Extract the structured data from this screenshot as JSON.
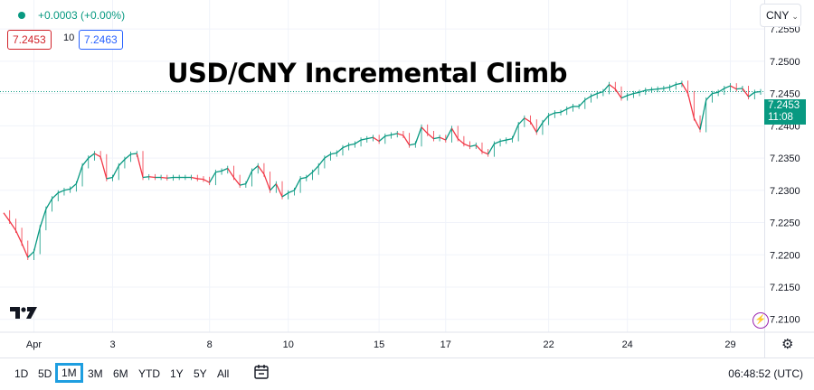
{
  "header": {
    "change": "+0.0003 (+0.00%)",
    "sell_price": "7.2453",
    "spread": "10",
    "buy_price": "7.2463",
    "currency": "CNY"
  },
  "headline": "USD/CNY Incremental Climb",
  "last_price": {
    "value": "7.2453",
    "countdown": "11:08"
  },
  "toolbar": {
    "timeframes": [
      "1D",
      "5D",
      "1M",
      "3M",
      "6M",
      "YTD",
      "1Y",
      "5Y",
      "All"
    ],
    "active": "1M",
    "clock": "06:48:52 (UTC)"
  },
  "colors": {
    "up": "#089981",
    "down": "#f23645",
    "accent": "#2962ff"
  },
  "chart_data": {
    "type": "line",
    "title": "",
    "xlabel": "",
    "ylabel": "",
    "ylim": [
      7.208,
      7.2595
    ],
    "y_ticks": [
      7.21,
      7.215,
      7.22,
      7.225,
      7.23,
      7.235,
      7.24,
      7.245,
      7.25,
      7.255
    ],
    "x_ticks": [
      {
        "label": "Apr",
        "idx": 5
      },
      {
        "label": "3",
        "idx": 18
      },
      {
        "label": "8",
        "idx": 34
      },
      {
        "label": "10",
        "idx": 47
      },
      {
        "label": "15",
        "idx": 62
      },
      {
        "label": "17",
        "idx": 73
      },
      {
        "label": "22",
        "idx": 90
      },
      {
        "label": "24",
        "idx": 103
      },
      {
        "label": "29",
        "idx": 120
      }
    ],
    "grid": true,
    "last_price": 7.2453,
    "values": [
      7.2265,
      7.2252,
      7.2238,
      7.2218,
      7.2196,
      7.2205,
      7.2242,
      7.2271,
      7.2287,
      7.2296,
      7.23,
      7.2302,
      7.231,
      7.2338,
      7.235,
      7.2357,
      7.2352,
      7.2318,
      7.232,
      7.2338,
      7.2348,
      7.2356,
      7.2357,
      7.232,
      7.2321,
      7.232,
      7.232,
      7.2319,
      7.232,
      7.232,
      7.232,
      7.232,
      7.2318,
      7.2317,
      7.2312,
      7.2328,
      7.233,
      7.2334,
      7.232,
      7.2308,
      7.231,
      7.233,
      7.2338,
      7.2325,
      7.23,
      7.231,
      7.229,
      7.2296,
      7.23,
      7.2318,
      7.232,
      7.2328,
      7.2338,
      7.235,
      7.2356,
      7.2358,
      7.2366,
      7.237,
      7.2372,
      7.2378,
      7.238,
      7.2382,
      7.2376,
      7.2384,
      7.2386,
      7.2388,
      7.2385,
      7.237,
      7.2372,
      7.2398,
      7.2388,
      7.238,
      7.2382,
      7.2378,
      7.2396,
      7.238,
      7.2372,
      7.2368,
      7.237,
      7.236,
      7.2356,
      7.2372,
      7.2376,
      7.2378,
      7.238,
      7.2402,
      7.2412,
      7.2406,
      7.239,
      7.2405,
      7.2416,
      7.242,
      7.2421,
      7.2426,
      7.243,
      7.243,
      7.244,
      7.2446,
      7.245,
      7.2453,
      7.2464,
      7.2457,
      7.2443,
      7.2447,
      7.245,
      7.2452,
      7.2455,
      7.2456,
      7.2457,
      7.2458,
      7.246,
      7.2464,
      7.2466,
      7.245,
      7.2412,
      7.2394,
      7.244,
      7.245,
      7.2452,
      7.2458,
      7.2462,
      7.2457,
      7.2458,
      7.2445,
      7.2452,
      7.2453
    ]
  }
}
